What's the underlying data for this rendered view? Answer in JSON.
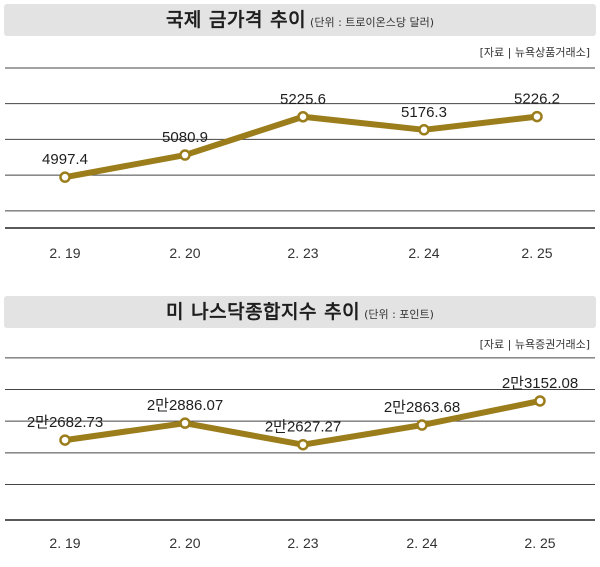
{
  "chart_data": [
    {
      "type": "line",
      "title": "국제 금가격 추이",
      "unit": "(단위 : 트로이온스당 달러)",
      "source": "[자료 | 뉴욕상품거래소]",
      "categories": [
        "2. 19",
        "2. 20",
        "2. 23",
        "2. 24",
        "2. 25"
      ],
      "values": [
        4997.4,
        5080.9,
        5225.6,
        5176.3,
        5226.2
      ],
      "labels": [
        "4997.4",
        "5080.9",
        "5225.6",
        "5176.3",
        "5226.2"
      ],
      "ylim": [
        4760,
        5440
      ],
      "gridlines": [
        4870,
        5005,
        5140,
        5275,
        5410
      ],
      "grid": true,
      "line_color": "#9b7d1b",
      "marker_fill": "#ffffff"
    },
    {
      "type": "line",
      "title": "미 나스닥종합지수 추이",
      "unit": "(단위 : 포인트)",
      "source": "[자료 | 뉴욕증권거래소]",
      "categories": [
        "2. 19",
        "2. 20",
        "2. 23",
        "2. 24",
        "2. 25"
      ],
      "values": [
        22682.73,
        22886.07,
        22627.27,
        22863.68,
        23152.08
      ],
      "labels": [
        "2만2682.73",
        "2만2886.07",
        "2만2627.27",
        "2만2863.68",
        "2만3152.08"
      ],
      "ylim": [
        21700,
        23800
      ],
      "gridlines": [
        22150,
        22530,
        22910,
        23290,
        23670
      ],
      "grid": true,
      "line_color": "#9b7d1b",
      "marker_fill": "#ffffff"
    }
  ],
  "colors": {
    "title_bg": "#e3e3e3",
    "grid": "#444444",
    "line": "#9b7d1b"
  }
}
